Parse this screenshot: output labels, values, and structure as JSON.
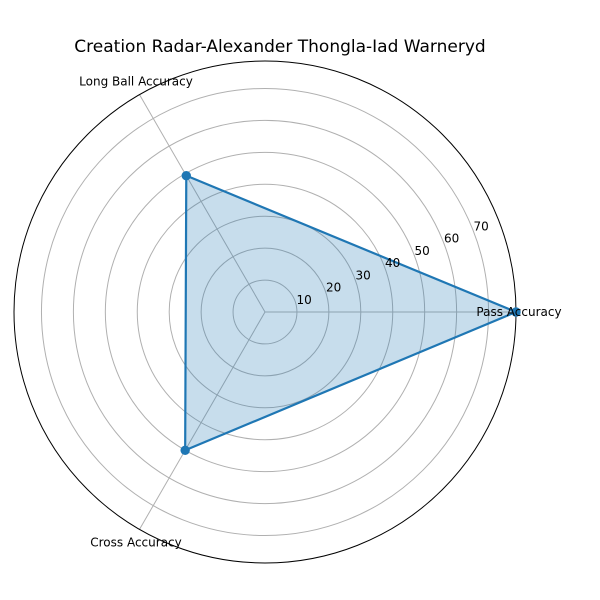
{
  "chart_data": {
    "type": "radar",
    "title": "Creation Radar-Alexander Thongla-Iad Warneryd",
    "axes": [
      "Pass Accuracy",
      "Long Ball Accuracy",
      "Cross Accuracy"
    ],
    "series": [
      {
        "values": [
          78.6,
          49.3,
          50.0
        ]
      }
    ],
    "rlim": [
      0,
      78.6
    ],
    "rticks": [
      10,
      20,
      30,
      40,
      50,
      60,
      70
    ],
    "grid": true,
    "line_color": "#1f77b4",
    "fill_color": "#1f77b4",
    "grid_color": "#b0b0b0"
  }
}
